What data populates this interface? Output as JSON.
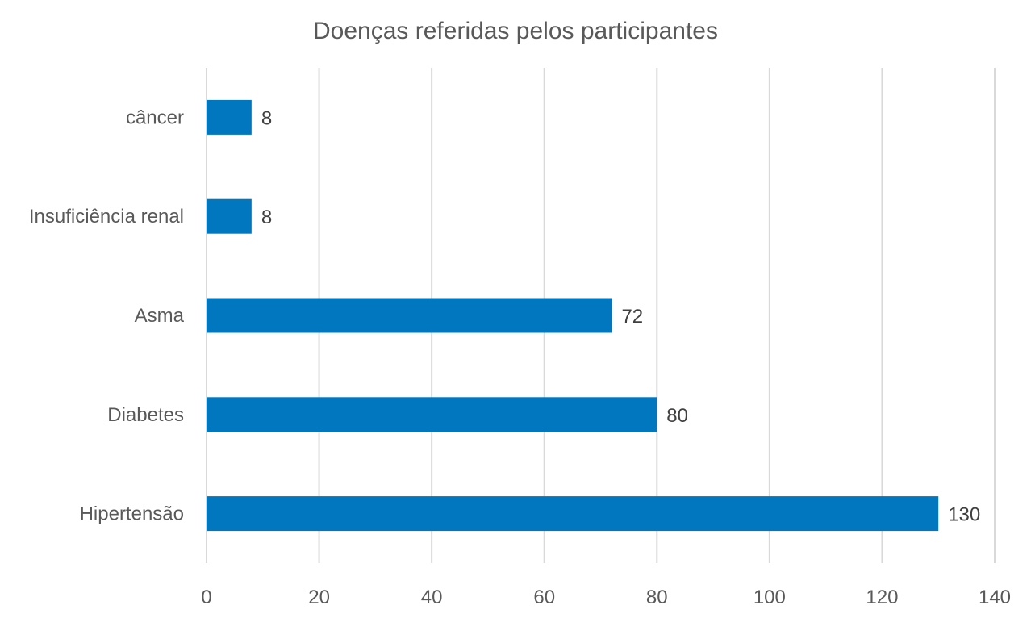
{
  "chart_data": {
    "type": "bar",
    "orientation": "horizontal",
    "title": "Doenças referidas pelos participantes",
    "xlabel": "",
    "ylabel": "",
    "categories": [
      "câncer",
      "Insuficiência renal",
      "Asma",
      "Diabetes",
      "Hipertensão"
    ],
    "values": [
      8,
      8,
      72,
      80,
      130
    ],
    "xlim": [
      0,
      140
    ],
    "xticks": [
      "0",
      "20",
      "40",
      "60",
      "80",
      "100",
      "120",
      "140"
    ],
    "grid": true,
    "legend": "none",
    "data_labels": true,
    "bar_color": "#0077BE"
  }
}
